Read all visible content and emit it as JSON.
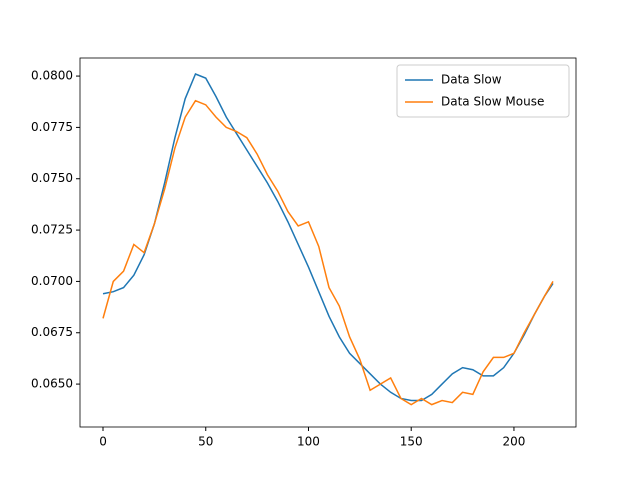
{
  "chart_data": {
    "type": "line",
    "x": [
      0,
      5,
      10,
      15,
      20,
      25,
      30,
      35,
      40,
      45,
      50,
      55,
      60,
      65,
      70,
      75,
      80,
      85,
      90,
      95,
      100,
      105,
      110,
      115,
      120,
      125,
      130,
      135,
      140,
      145,
      150,
      155,
      160,
      165,
      170,
      175,
      180,
      185,
      190,
      195,
      200,
      205,
      210,
      215,
      219
    ],
    "series": [
      {
        "name": "Data Slow",
        "color": "#1f77b4",
        "values": [
          0.0694,
          0.0695,
          0.0697,
          0.0703,
          0.0713,
          0.0728,
          0.0748,
          0.077,
          0.0789,
          0.0801,
          0.0799,
          0.079,
          0.078,
          0.0772,
          0.0764,
          0.0756,
          0.0748,
          0.0739,
          0.0729,
          0.0718,
          0.0707,
          0.0695,
          0.0683,
          0.0673,
          0.0665,
          0.066,
          0.0655,
          0.065,
          0.0646,
          0.0643,
          0.0642,
          0.0642,
          0.0645,
          0.065,
          0.0655,
          0.0658,
          0.0657,
          0.0654,
          0.0654,
          0.0658,
          0.0665,
          0.0674,
          0.0684,
          0.0693,
          0.0699
        ]
      },
      {
        "name": "Data Slow Mouse",
        "color": "#ff7f0e",
        "values": [
          0.0682,
          0.07,
          0.0705,
          0.0718,
          0.0714,
          0.0728,
          0.0745,
          0.0765,
          0.078,
          0.0788,
          0.0786,
          0.078,
          0.0775,
          0.0773,
          0.077,
          0.0762,
          0.0752,
          0.0744,
          0.0734,
          0.0727,
          0.0729,
          0.0717,
          0.0697,
          0.0688,
          0.0673,
          0.0662,
          0.0647,
          0.065,
          0.0653,
          0.0643,
          0.064,
          0.0643,
          0.064,
          0.0642,
          0.0641,
          0.0646,
          0.0645,
          0.0656,
          0.0663,
          0.0663,
          0.0665,
          0.0675,
          0.0684,
          0.0693,
          0.07
        ]
      }
    ],
    "xlim": [
      -11.2,
      230.2
    ],
    "xticks": [
      0,
      50,
      100,
      150,
      200
    ],
    "ylim": [
      0.06291,
      0.08088
    ],
    "yticks": [
      {
        "value": 0.065,
        "label": "0.0650"
      },
      {
        "value": 0.0675,
        "label": "0.0675"
      },
      {
        "value": 0.07,
        "label": "0.0700"
      },
      {
        "value": 0.0725,
        "label": "0.0725"
      },
      {
        "value": 0.075,
        "label": "0.0750"
      },
      {
        "value": 0.0775,
        "label": "0.0775"
      },
      {
        "value": 0.08,
        "label": "0.0800"
      }
    ],
    "legend": "upper right",
    "grid": false
  }
}
